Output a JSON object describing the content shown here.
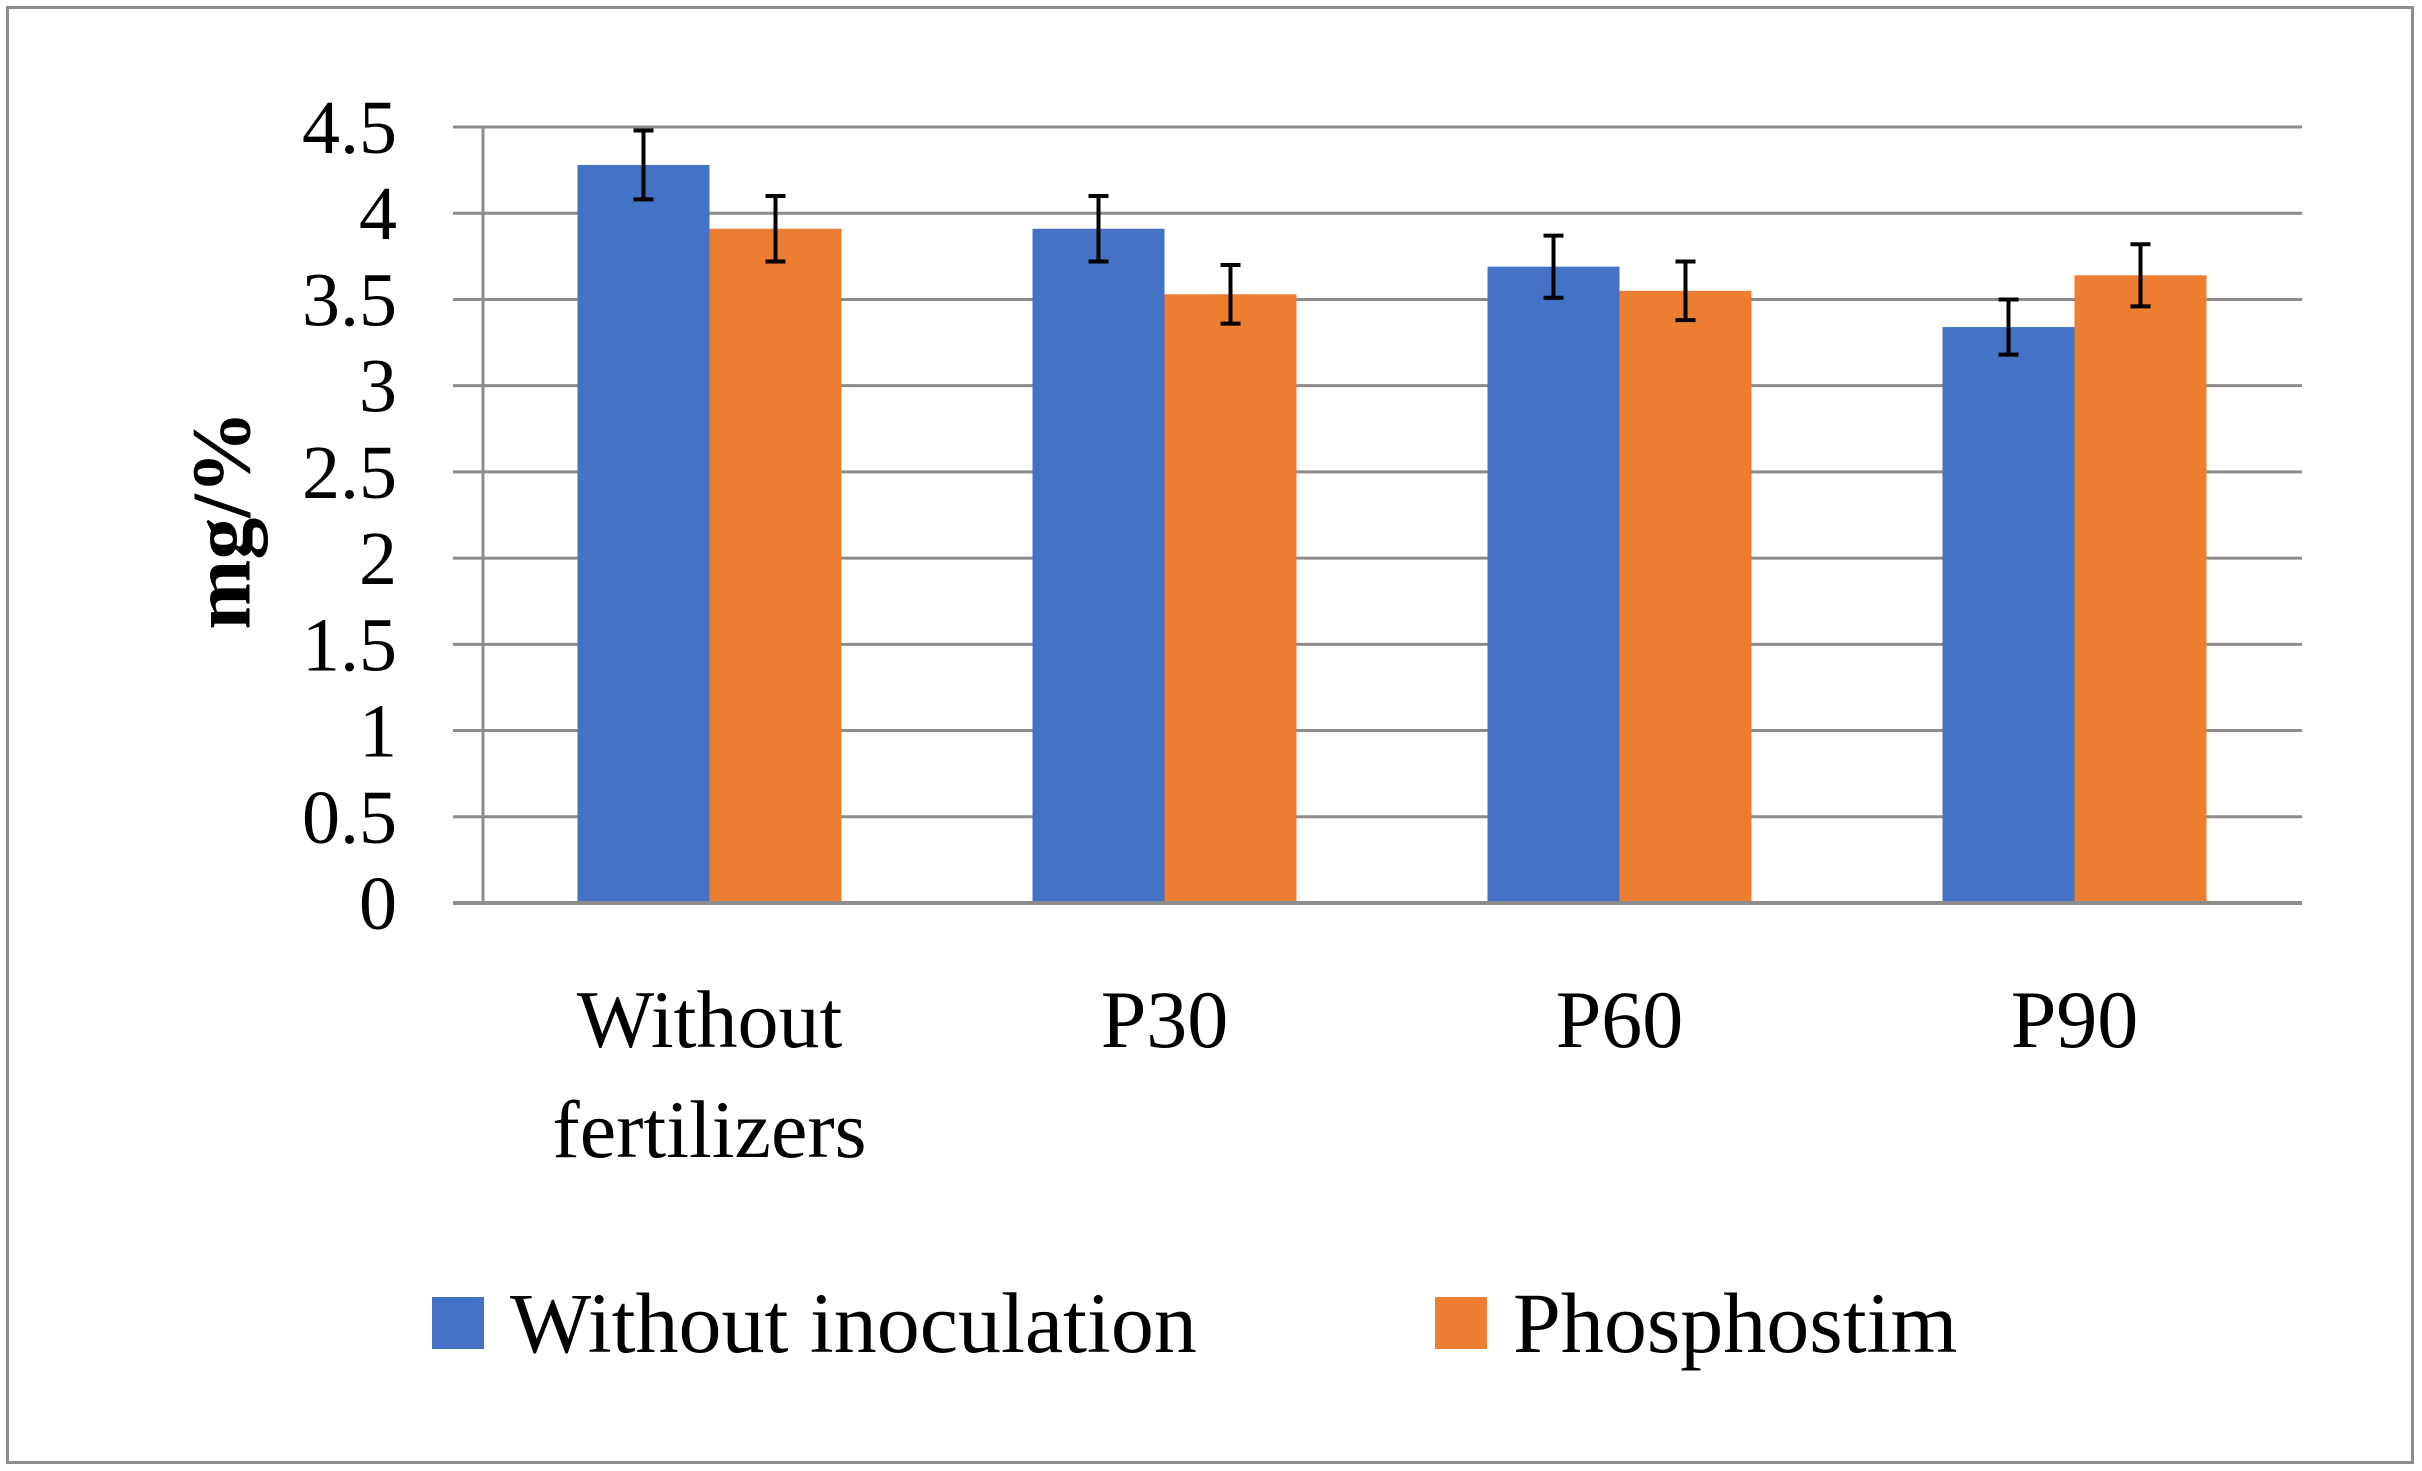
{
  "chart_data": {
    "type": "bar",
    "title": "",
    "xlabel": "",
    "ylabel": "mg/%",
    "ylim": [
      0,
      4.5
    ],
    "ytick_step": 0.5,
    "ytick_labels": [
      "0",
      "0.5",
      "1",
      "1.5",
      "2",
      "2.5",
      "3",
      "3.5",
      "4",
      "4.5"
    ],
    "grid": true,
    "legend_position": "bottom",
    "categories": [
      [
        "Without",
        "fertilizers"
      ],
      [
        "P30"
      ],
      [
        "P60"
      ],
      [
        "P90"
      ]
    ],
    "series": [
      {
        "name": "Without inoculation",
        "color": "#4472c4",
        "values": [
          4.28,
          3.91,
          3.69,
          3.34
        ],
        "errors": [
          0.2,
          0.19,
          0.18,
          0.16
        ]
      },
      {
        "name": "Phosphostim",
        "color": "#ed7d31",
        "values": [
          3.91,
          3.53,
          3.55,
          3.64
        ],
        "errors": [
          0.19,
          0.17,
          0.17,
          0.18
        ]
      }
    ]
  }
}
